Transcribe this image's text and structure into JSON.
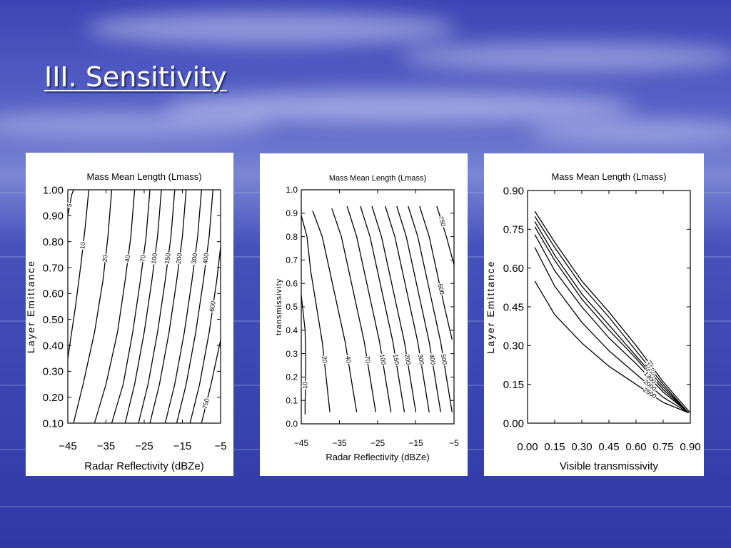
{
  "slide": {
    "title": "III. Sensitivity"
  },
  "colors": {
    "background": "#3d48b8",
    "ink": "#000000",
    "panel": "#ffffff",
    "title": "#ffffff"
  },
  "chart_data": [
    {
      "type": "contour",
      "title": "Mass Mean Length (Lmass)",
      "xlabel": "Radar Reflectivity (dBZe)",
      "ylabel": "Layer Emittance",
      "xlim": [
        -45,
        -5
      ],
      "ylim": [
        0.1,
        1.0
      ],
      "xticks": [
        "−45",
        "−35",
        "−25",
        "−15",
        "−5"
      ],
      "yticks": [
        "0.10",
        "0.20",
        "0.30",
        "0.40",
        "0.50",
        "0.60",
        "0.70",
        "0.80",
        "0.90",
        "1.00"
      ],
      "contours": [
        {
          "label": "5",
          "points": [
            [
              -45.0,
              0.9
            ],
            [
              -44.0,
              0.98
            ],
            [
              -43.5,
              1.0
            ]
          ]
        },
        {
          "label": "10",
          "points": [
            [
              -45.0,
              0.35
            ],
            [
              -43.0,
              0.55
            ],
            [
              -41.5,
              0.72
            ],
            [
              -40.5,
              0.85
            ],
            [
              -39.5,
              1.0
            ]
          ]
        },
        {
          "label": "20",
          "points": [
            [
              -43.5,
              0.1
            ],
            [
              -41.0,
              0.25
            ],
            [
              -38.0,
              0.45
            ],
            [
              -35.8,
              0.65
            ],
            [
              -34.5,
              0.82
            ],
            [
              -33.5,
              1.0
            ]
          ]
        },
        {
          "label": "40",
          "points": [
            [
              -38.0,
              0.1
            ],
            [
              -35.0,
              0.25
            ],
            [
              -32.0,
              0.45
            ],
            [
              -30.0,
              0.65
            ],
            [
              -28.5,
              0.82
            ],
            [
              -27.5,
              1.0
            ]
          ]
        },
        {
          "label": "70",
          "points": [
            [
              -33.5,
              0.1
            ],
            [
              -30.5,
              0.25
            ],
            [
              -28.0,
              0.45
            ],
            [
              -26.0,
              0.65
            ],
            [
              -24.5,
              0.82
            ],
            [
              -23.5,
              1.0
            ]
          ]
        },
        {
          "label": "100",
          "points": [
            [
              -30.0,
              0.1
            ],
            [
              -27.5,
              0.25
            ],
            [
              -25.0,
              0.45
            ],
            [
              -23.0,
              0.65
            ],
            [
              -21.5,
              0.82
            ],
            [
              -20.5,
              1.0
            ]
          ]
        },
        {
          "label": "150",
          "points": [
            [
              -26.5,
              0.1
            ],
            [
              -24.0,
              0.25
            ],
            [
              -21.5,
              0.45
            ],
            [
              -19.5,
              0.65
            ],
            [
              -18.0,
              0.82
            ],
            [
              -17.0,
              1.0
            ]
          ]
        },
        {
          "label": "200",
          "points": [
            [
              -23.5,
              0.1
            ],
            [
              -21.0,
              0.25
            ],
            [
              -18.5,
              0.45
            ],
            [
              -16.5,
              0.65
            ],
            [
              -15.0,
              0.82
            ],
            [
              -14.0,
              1.0
            ]
          ]
        },
        {
          "label": "300",
          "points": [
            [
              -19.5,
              0.1
            ],
            [
              -17.0,
              0.25
            ],
            [
              -14.5,
              0.45
            ],
            [
              -12.5,
              0.65
            ],
            [
              -11.0,
              0.82
            ],
            [
              -10.0,
              1.0
            ]
          ]
        },
        {
          "label": "400",
          "points": [
            [
              -16.5,
              0.1
            ],
            [
              -14.0,
              0.25
            ],
            [
              -11.5,
              0.45
            ],
            [
              -9.5,
              0.65
            ],
            [
              -8.0,
              0.82
            ],
            [
              -7.0,
              1.0
            ]
          ]
        },
        {
          "label": "600",
          "points": [
            [
              -13.0,
              0.1
            ],
            [
              -10.5,
              0.25
            ],
            [
              -8.0,
              0.45
            ],
            [
              -6.0,
              0.65
            ],
            [
              -5.0,
              0.78
            ]
          ]
        },
        {
          "label": "750",
          "points": [
            [
              -10.0,
              0.1
            ],
            [
              -7.5,
              0.25
            ],
            [
              -5.0,
              0.42
            ]
          ]
        }
      ]
    },
    {
      "type": "contour",
      "title": "Mass Mean Length (Lmass)",
      "xlabel": "Radar Reflectivity (dBZe)",
      "ylabel": "transmissivity",
      "xlim": [
        -45,
        -5
      ],
      "ylim": [
        0.0,
        1.0
      ],
      "xticks": [
        "−45",
        "−35",
        "−25",
        "−15",
        "−5"
      ],
      "yticks": [
        "0.0",
        "0.1",
        "0.2",
        "0.3",
        "0.4",
        "0.5",
        "0.6",
        "0.7",
        "0.8",
        "0.9",
        "1.0"
      ],
      "contours": [
        {
          "label": "10",
          "points": [
            [
              -45.0,
              0.55
            ],
            [
              -44.0,
              0.4
            ],
            [
              -43.8,
              0.25
            ],
            [
              -44.0,
              0.08
            ],
            [
              -44.0,
              0.04
            ]
          ]
        },
        {
          "label": "20",
          "points": [
            [
              -45.0,
              0.89
            ],
            [
              -43.5,
              0.8
            ],
            [
              -42.5,
              0.65
            ],
            [
              -41.0,
              0.5
            ],
            [
              -39.5,
              0.35
            ],
            [
              -38.5,
              0.2
            ],
            [
              -37.5,
              0.05
            ]
          ]
        },
        {
          "label": "40",
          "points": [
            [
              -42.0,
              0.91
            ],
            [
              -39.5,
              0.8
            ],
            [
              -37.5,
              0.65
            ],
            [
              -35.5,
              0.5
            ],
            [
              -33.5,
              0.35
            ],
            [
              -32.0,
              0.2
            ],
            [
              -30.5,
              0.05
            ]
          ]
        },
        {
          "label": "70",
          "points": [
            [
              -37.0,
              0.92
            ],
            [
              -34.5,
              0.8
            ],
            [
              -32.5,
              0.65
            ],
            [
              -30.5,
              0.5
            ],
            [
              -28.5,
              0.35
            ],
            [
              -27.0,
              0.2
            ],
            [
              -25.5,
              0.05
            ]
          ]
        },
        {
          "label": "100",
          "points": [
            [
              -33.0,
              0.93
            ],
            [
              -30.5,
              0.8
            ],
            [
              -28.5,
              0.65
            ],
            [
              -26.5,
              0.5
            ],
            [
              -24.5,
              0.35
            ],
            [
              -23.0,
              0.2
            ],
            [
              -21.5,
              0.05
            ]
          ]
        },
        {
          "label": "150",
          "points": [
            [
              -29.5,
              0.93
            ],
            [
              -27.0,
              0.8
            ],
            [
              -25.0,
              0.65
            ],
            [
              -23.0,
              0.5
            ],
            [
              -21.0,
              0.35
            ],
            [
              -19.5,
              0.2
            ],
            [
              -18.0,
              0.05
            ]
          ]
        },
        {
          "label": "200",
          "points": [
            [
              -26.5,
              0.93
            ],
            [
              -24.0,
              0.8
            ],
            [
              -22.0,
              0.65
            ],
            [
              -20.0,
              0.5
            ],
            [
              -18.0,
              0.35
            ],
            [
              -16.5,
              0.2
            ],
            [
              -15.0,
              0.05
            ]
          ]
        },
        {
          "label": "300",
          "points": [
            [
              -23.0,
              0.93
            ],
            [
              -20.5,
              0.8
            ],
            [
              -18.5,
              0.65
            ],
            [
              -16.5,
              0.5
            ],
            [
              -14.5,
              0.35
            ],
            [
              -13.0,
              0.2
            ],
            [
              -11.5,
              0.05
            ]
          ]
        },
        {
          "label": "400",
          "points": [
            [
              -20.0,
              0.93
            ],
            [
              -17.5,
              0.8
            ],
            [
              -15.5,
              0.65
            ],
            [
              -13.5,
              0.5
            ],
            [
              -11.5,
              0.35
            ],
            [
              -10.0,
              0.2
            ],
            [
              -8.5,
              0.05
            ]
          ]
        },
        {
          "label": "500",
          "points": [
            [
              -17.0,
              0.93
            ],
            [
              -14.5,
              0.8
            ],
            [
              -12.5,
              0.65
            ],
            [
              -10.5,
              0.5
            ],
            [
              -8.5,
              0.35
            ],
            [
              -7.0,
              0.2
            ],
            [
              -5.5,
              0.05
            ]
          ]
        },
        {
          "label": "600",
          "points": [
            [
              -14.0,
              0.93
            ],
            [
              -11.5,
              0.8
            ],
            [
              -9.5,
              0.65
            ],
            [
              -7.5,
              0.5
            ],
            [
              -5.5,
              0.36
            ]
          ]
        },
        {
          "label": "750",
          "points": [
            [
              -9.5,
              0.93
            ],
            [
              -7.0,
              0.8
            ],
            [
              -5.0,
              0.68
            ]
          ]
        }
      ]
    },
    {
      "type": "contour",
      "title": "Mass Mean Length (Lmass)",
      "xlabel": "Visible transmissivity",
      "ylabel": "Layer Emittance",
      "xlim": [
        0.0,
        0.9
      ],
      "ylim": [
        0.0,
        0.9
      ],
      "xticks": [
        "0.00",
        "0.15",
        "0.30",
        "0.45",
        "0.60",
        "0.75",
        "0.90"
      ],
      "yticks": [
        "0.00",
        "0.15",
        "0.30",
        "0.45",
        "0.60",
        "0.75",
        "0.90"
      ],
      "contours": [
        {
          "label": "70",
          "points": [
            [
              0.04,
              0.82
            ],
            [
              0.15,
              0.7
            ],
            [
              0.3,
              0.55
            ],
            [
              0.45,
              0.43
            ],
            [
              0.6,
              0.3
            ],
            [
              0.75,
              0.16
            ],
            [
              0.9,
              0.04
            ]
          ]
        },
        {
          "label": "150",
          "points": [
            [
              0.04,
              0.8
            ],
            [
              0.15,
              0.68
            ],
            [
              0.3,
              0.53
            ],
            [
              0.45,
              0.41
            ],
            [
              0.6,
              0.28
            ],
            [
              0.75,
              0.15
            ],
            [
              0.89,
              0.04
            ]
          ]
        },
        {
          "label": "400",
          "points": [
            [
              0.04,
              0.78
            ],
            [
              0.15,
              0.65
            ],
            [
              0.3,
              0.5
            ],
            [
              0.45,
              0.38
            ],
            [
              0.6,
              0.26
            ],
            [
              0.75,
              0.14
            ],
            [
              0.89,
              0.04
            ]
          ]
        },
        {
          "label": "600",
          "points": [
            [
              0.04,
              0.76
            ],
            [
              0.15,
              0.63
            ],
            [
              0.3,
              0.48
            ],
            [
              0.45,
              0.36
            ],
            [
              0.6,
              0.25
            ],
            [
              0.75,
              0.13
            ],
            [
              0.89,
              0.04
            ]
          ]
        },
        {
          "label": "1300",
          "points": [
            [
              0.04,
              0.73
            ],
            [
              0.15,
              0.59
            ],
            [
              0.3,
              0.45
            ],
            [
              0.45,
              0.33
            ],
            [
              0.6,
              0.23
            ],
            [
              0.75,
              0.12
            ],
            [
              0.89,
              0.04
            ]
          ]
        },
        {
          "label": "2000",
          "points": [
            [
              0.04,
              0.68
            ],
            [
              0.15,
              0.53
            ],
            [
              0.3,
              0.39
            ],
            [
              0.45,
              0.28
            ],
            [
              0.6,
              0.19
            ],
            [
              0.75,
              0.1
            ],
            [
              0.89,
              0.04
            ]
          ]
        },
        {
          "label": "2500",
          "points": [
            [
              0.04,
              0.55
            ],
            [
              0.15,
              0.42
            ],
            [
              0.3,
              0.31
            ],
            [
              0.45,
              0.22
            ],
            [
              0.6,
              0.15
            ],
            [
              0.75,
              0.08
            ],
            [
              0.89,
              0.04
            ]
          ]
        }
      ]
    }
  ]
}
